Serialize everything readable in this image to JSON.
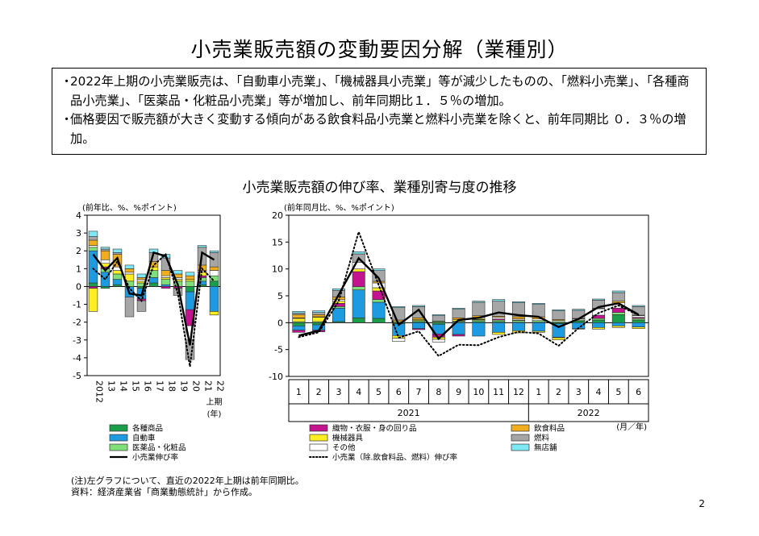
{
  "title": "小売業販売額の変動要因分解（業種別）",
  "summary": {
    "bullet": "・",
    "points": [
      "2022年上期の小売業販売は、「自動車小売業」、「機械器具小売業」等が減少したものの、「燃料小売業」、「各種商品小売業」、「医薬品・化粧品小売業」等が増加し、前年同期比１．５％の増加。",
      "価格要因で販売額が大きく変動する傾向がある飲食料品小売業と燃料小売業を除くと、前年同期比 ０．３％の増加。"
    ]
  },
  "subtitle": "小売業販売額の伸び率、業種別寄与度の推移",
  "colors": {
    "各種商品": "#1a9e4a",
    "自動車": "#1e9be0",
    "医薬品・化粧品": "#7fe07a",
    "織物・衣服・身の回り品": "#c4138f",
    "機械器具": "#ffee22",
    "その他": "#ffffff",
    "飲食料品": "#f0ad1e",
    "燃料": "#a6a6a6",
    "無店舗": "#7fe8f5"
  },
  "legend": [
    {
      "key": "各種商品",
      "label": "各種商品",
      "kind": "bar"
    },
    {
      "key": "織物・衣服・身の回り品",
      "label": "織物・衣服・身の回り品",
      "kind": "bar"
    },
    {
      "key": "飲食料品",
      "label": "飲食料品",
      "kind": "bar"
    },
    {
      "key": "自動車",
      "label": "自動車",
      "kind": "bar"
    },
    {
      "key": "機械器具",
      "label": "機械器具",
      "kind": "bar"
    },
    {
      "key": "燃料",
      "label": "燃料",
      "kind": "bar"
    },
    {
      "key": "医薬品・化粧品",
      "label": "医薬品・化粧品",
      "kind": "bar"
    },
    {
      "key": "その他",
      "label": "その他",
      "kind": "bar"
    },
    {
      "key": "無店舗",
      "label": "無店舗",
      "kind": "bar"
    },
    {
      "key": "total",
      "label": "小売業伸び率",
      "kind": "solid"
    },
    {
      "key": "excl",
      "label": "小売業（除.飲食料品、燃料）伸び率",
      "kind": "dotted"
    }
  ],
  "chart_data": [
    {
      "type": "bar",
      "stacked": true,
      "unit_label": "(前年比、%、%ポイント)",
      "ylim": [
        -5,
        4
      ],
      "yticks": [
        "4",
        "3",
        "2",
        "1",
        "0",
        "-1",
        "-2",
        "-3",
        "-4",
        "-5"
      ],
      "categories": [
        "2012",
        "13",
        "14",
        "15",
        "16",
        "17",
        "18",
        "19",
        "20",
        "21",
        "22"
      ],
      "x_note": [
        "上期",
        "(年)"
      ],
      "series": [
        {
          "name": "各種商品",
          "values": [
            0.2,
            -0.1,
            0.1,
            0.0,
            -0.1,
            0.2,
            0.0,
            0.0,
            -0.3,
            0.1,
            0.3
          ]
        },
        {
          "name": "自動車",
          "values": [
            1.8,
            0.8,
            0.3,
            -0.6,
            -0.6,
            0.3,
            0.1,
            0.0,
            -1.0,
            0.2,
            -1.4
          ]
        },
        {
          "name": "医薬品・化粧品",
          "values": [
            0.2,
            0.2,
            0.3,
            0.3,
            0.2,
            0.4,
            0.3,
            0.3,
            0.3,
            0.2,
            0.3
          ]
        },
        {
          "name": "織物・衣服・身の回り品",
          "values": [
            -0.1,
            0.1,
            0.0,
            0.0,
            -0.1,
            0.0,
            -0.1,
            -0.1,
            -0.9,
            0.1,
            0.0
          ]
        },
        {
          "name": "機械器具",
          "values": [
            -1.3,
            0.2,
            0.2,
            0.4,
            0.1,
            0.2,
            0.1,
            0.1,
            0.1,
            0.2,
            -0.2
          ]
        },
        {
          "name": "その他",
          "values": [
            0.1,
            0.2,
            0.2,
            0.1,
            0.1,
            0.0,
            0.1,
            0.1,
            -0.8,
            0.1,
            0.3
          ]
        },
        {
          "name": "飲食料品",
          "values": [
            0.3,
            0.5,
            0.7,
            0.2,
            0.1,
            0.3,
            0.3,
            0.2,
            0.2,
            0.3,
            0.2
          ]
        },
        {
          "name": "燃料",
          "values": [
            0.2,
            0.1,
            0.1,
            -1.1,
            -0.6,
            0.5,
            0.7,
            -0.4,
            -1.1,
            1.0,
            0.8
          ]
        },
        {
          "name": "無店舗",
          "values": [
            0.3,
            0.1,
            0.2,
            0.2,
            0.2,
            0.2,
            0.2,
            0.2,
            0.2,
            0.1,
            0.1
          ]
        }
      ],
      "line_total": [
        1.8,
        0.9,
        1.6,
        -0.4,
        -0.5,
        1.9,
        1.7,
        0.1,
        -3.3,
        1.9,
        1.5
      ],
      "line_excl": [
        1.0,
        0.4,
        1.4,
        -0.1,
        -0.8,
        1.2,
        1.8,
        -0.4,
        -4.5,
        1.0,
        0.3
      ]
    },
    {
      "type": "bar",
      "stacked": true,
      "unit_label": "(前年同月比、%、%ポイント)",
      "ylim": [
        -10,
        20
      ],
      "yticks": [
        "20",
        "15",
        "10",
        "5",
        "0",
        "-5",
        "-10"
      ],
      "categories": [
        "1",
        "2",
        "3",
        "4",
        "5",
        "6",
        "7",
        "8",
        "9",
        "10",
        "11",
        "12",
        "1",
        "2",
        "3",
        "4",
        "5",
        "6"
      ],
      "year_labels": [
        "2021",
        "2022"
      ],
      "x_note": "(月／年)",
      "series": [
        {
          "name": "各種商品",
          "values": [
            -0.6,
            -0.4,
            0.2,
            0.9,
            0.8,
            -0.2,
            0.2,
            -0.3,
            0.1,
            0.2,
            0.2,
            0.1,
            0.1,
            -0.2,
            0.3,
            0.5,
            1.5,
            0.5
          ]
        },
        {
          "name": "自動車",
          "values": [
            -0.8,
            -1.0,
            2.5,
            5.2,
            3.0,
            -2.2,
            -1.1,
            -1.8,
            -2.2,
            -2.5,
            -1.8,
            -1.5,
            -1.6,
            -2.5,
            -1.1,
            -0.9,
            -0.6,
            -0.8
          ]
        },
        {
          "name": "医薬品・化粧品",
          "values": [
            0.2,
            0.2,
            0.3,
            0.6,
            0.5,
            0.2,
            0.2,
            0.2,
            0.2,
            0.3,
            0.3,
            0.3,
            0.3,
            0.2,
            0.2,
            0.3,
            0.4,
            0.3
          ]
        },
        {
          "name": "織物・衣服・身の回り品",
          "values": [
            -0.4,
            -0.3,
            0.6,
            2.8,
            1.6,
            0.0,
            -0.2,
            -0.6,
            -0.3,
            0.1,
            0.2,
            0.1,
            0.0,
            -0.1,
            0.0,
            0.6,
            0.8,
            0.2
          ]
        },
        {
          "name": "機械器具",
          "values": [
            0.6,
            0.8,
            0.4,
            0.5,
            0.6,
            -0.5,
            0.2,
            -0.4,
            0.3,
            0.2,
            -0.4,
            -0.4,
            -0.2,
            -0.4,
            -0.1,
            -0.3,
            -0.3,
            -0.3
          ]
        },
        {
          "name": "その他",
          "values": [
            0.1,
            0.1,
            0.3,
            1.2,
            0.9,
            -0.6,
            0.0,
            -0.5,
            0.0,
            0.2,
            0.3,
            0.2,
            0.3,
            0.2,
            0.2,
            1.2,
            1.0,
            0.3
          ]
        },
        {
          "name": "飲食料品",
          "values": [
            0.6,
            0.4,
            0.5,
            0.0,
            0.3,
            0.3,
            0.3,
            0.1,
            0.3,
            0.3,
            0.2,
            0.4,
            0.4,
            0.2,
            0.1,
            0.1,
            0.3,
            0.1
          ]
        },
        {
          "name": "燃料",
          "values": [
            0.3,
            0.4,
            1.2,
            1.6,
            2.0,
            2.3,
            2.1,
            1.0,
            1.6,
            2.5,
            2.8,
            2.6,
            2.3,
            1.6,
            1.5,
            1.5,
            1.6,
            1.6
          ]
        },
        {
          "name": "無店舗",
          "values": [
            0.3,
            0.3,
            0.3,
            0.4,
            0.3,
            0.2,
            0.2,
            0.2,
            0.2,
            0.2,
            0.3,
            0.2,
            0.2,
            0.2,
            0.2,
            0.2,
            0.3,
            0.2
          ]
        }
      ],
      "line_total": [
        -2.4,
        -1.5,
        5.2,
        12.0,
        8.3,
        -0.4,
        2.4,
        -3.0,
        0.5,
        0.9,
        1.9,
        1.4,
        1.1,
        -0.8,
        0.7,
        2.9,
        3.6,
        1.5
      ],
      "line_excl": [
        -2.7,
        -1.8,
        4.0,
        16.9,
        7.0,
        -2.8,
        -1.6,
        -6.2,
        -4.1,
        -4.2,
        -2.7,
        -1.7,
        -2.0,
        -4.3,
        -1.0,
        1.8,
        3.2,
        1.4
      ]
    }
  ],
  "notes": [
    "(注)左グラフについて、直近の2022年上期は前年同期比。",
    "資料：経済産業省「商業動態統計」から作成。"
  ],
  "page_number": "2"
}
